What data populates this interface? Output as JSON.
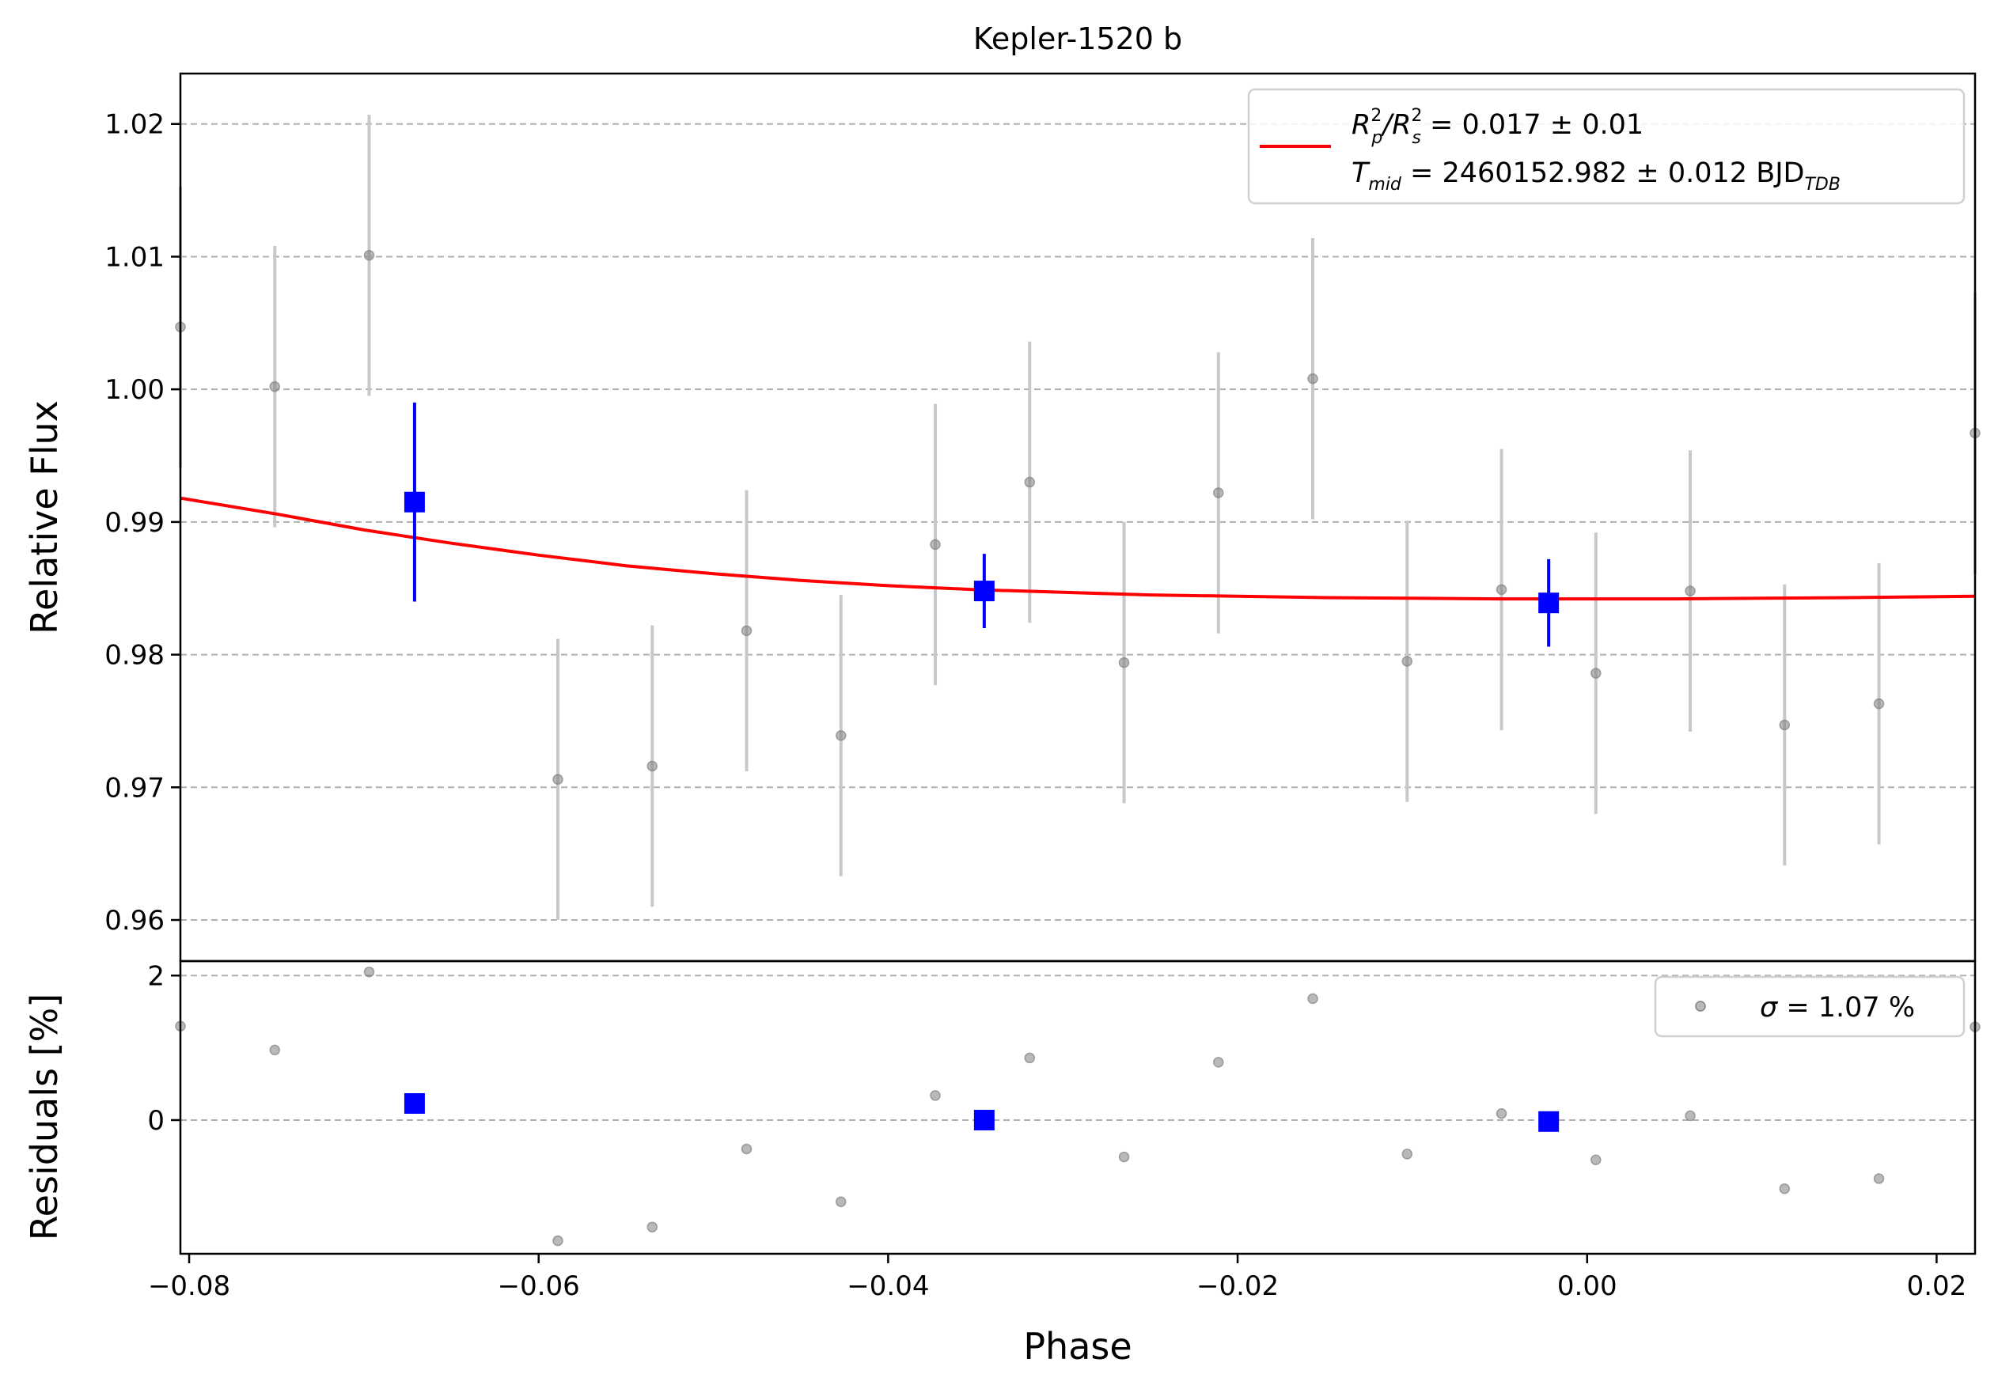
{
  "colors": {
    "model": "#ff0000",
    "binned": "#0000ff",
    "raw": "#808080",
    "raw_err": "#c8c8c8",
    "grid": "#b0b0b0"
  },
  "chart_data": [
    {
      "type": "scatter",
      "panel": "lightcurve",
      "title": "Kepler-1520 b",
      "xlabel": "Phase",
      "ylabel": "Relative Flux",
      "xlim": [
        -0.0805,
        0.0222
      ],
      "ylim": [
        0.9569,
        1.0238
      ],
      "xticks": [
        -0.08,
        -0.06,
        -0.04,
        -0.02,
        0.0,
        0.02
      ],
      "xtick_labels": [
        "−0.08",
        "−0.06",
        "−0.04",
        "−0.02",
        "0.00",
        "0.02"
      ],
      "yticks": [
        0.96,
        0.97,
        0.98,
        0.99,
        1.0,
        1.01,
        1.02
      ],
      "ytick_labels": [
        "0.96",
        "0.97",
        "0.98",
        "0.99",
        "1.00",
        "1.01",
        "1.02"
      ],
      "grid": "horizontal dashed",
      "legend_position": "upper right",
      "legend": {
        "line1_main": "R",
        "line1_sup1": "2",
        "line1_sub1": "p",
        "line1_slash": "/R",
        "line1_sup2": "2",
        "line1_sub2": "s",
        "line1_rest": " = 0.017 ± 0.01",
        "line2_main": "T",
        "line2_sub": "mid",
        "line2_rest": " = 2460152.982 ± 0.012 BJD",
        "line2_unit_sub": "TDB"
      },
      "raw_points": {
        "x": [
          -0.0805,
          -0.0751,
          -0.0697,
          -0.0589,
          -0.0535,
          -0.0481,
          -0.0427,
          -0.0373,
          -0.0319,
          -0.0265,
          -0.0211,
          -0.0157,
          -0.0103,
          -0.0049,
          0.0005,
          0.0059,
          0.0113,
          0.0167,
          0.0222
        ],
        "y": [
          1.0047,
          1.0002,
          1.0101,
          0.9706,
          0.9716,
          0.9818,
          0.9739,
          0.9883,
          0.993,
          0.9794,
          0.9922,
          1.0008,
          0.9795,
          0.9849,
          0.9786,
          0.9848,
          0.9747,
          0.9763,
          0.9967
        ],
        "err": [
          0.0106,
          0.0106,
          0.0106,
          0.0106,
          0.0106,
          0.0106,
          0.0106,
          0.0106,
          0.0106,
          0.0106,
          0.0106,
          0.0106,
          0.0106,
          0.0106,
          0.0106,
          0.0106,
          0.0106,
          0.0106,
          0.0106
        ]
      },
      "binned_points": {
        "x": [
          -0.0671,
          -0.0345,
          -0.0022
        ],
        "y": [
          0.9915,
          0.9848,
          0.9839
        ],
        "err": [
          0.0075,
          0.0028,
          0.0033
        ]
      },
      "model_curve": {
        "x": [
          -0.0805,
          -0.075,
          -0.07,
          -0.065,
          -0.06,
          -0.055,
          -0.05,
          -0.045,
          -0.04,
          -0.035,
          -0.03,
          -0.025,
          -0.02,
          -0.015,
          -0.01,
          -0.005,
          0.0,
          0.005,
          0.01,
          0.015,
          0.0222
        ],
        "y": [
          0.9918,
          0.9906,
          0.9894,
          0.9884,
          0.9875,
          0.9867,
          0.9861,
          0.9856,
          0.9852,
          0.9849,
          0.9847,
          0.9845,
          0.9844,
          0.9843,
          0.98425,
          0.9842,
          0.9842,
          0.9842,
          0.98425,
          0.9843,
          0.9844
        ]
      }
    },
    {
      "type": "scatter",
      "panel": "residuals",
      "xlabel": "Phase",
      "ylabel": "Residuals [%]",
      "xlim": [
        -0.0805,
        0.0222
      ],
      "ylim": [
        -1.85,
        2.2
      ],
      "yticks": [
        0,
        2
      ],
      "ytick_labels": [
        "0",
        "2"
      ],
      "grid": "horizontal dashed",
      "legend_position": "upper right",
      "legend": {
        "sigma_symbol": "σ",
        "sigma_text": " = 1.07 %"
      },
      "raw_points": {
        "x": [
          -0.0805,
          -0.0751,
          -0.0697,
          -0.0589,
          -0.0535,
          -0.0481,
          -0.0427,
          -0.0373,
          -0.0319,
          -0.0265,
          -0.0211,
          -0.0157,
          -0.0103,
          -0.0049,
          0.0005,
          0.0059,
          0.0113,
          0.0167,
          0.0222
        ],
        "y": [
          1.3,
          0.97,
          2.05,
          -1.67,
          -1.48,
          -0.4,
          -1.13,
          0.34,
          0.86,
          -0.51,
          0.8,
          1.68,
          -0.47,
          0.09,
          -0.55,
          0.06,
          -0.95,
          -0.81,
          1.29
        ]
      },
      "binned_points": {
        "x": [
          -0.0671,
          -0.0345,
          -0.0022
        ],
        "y": [
          0.23,
          0.0,
          -0.02
        ]
      }
    }
  ]
}
